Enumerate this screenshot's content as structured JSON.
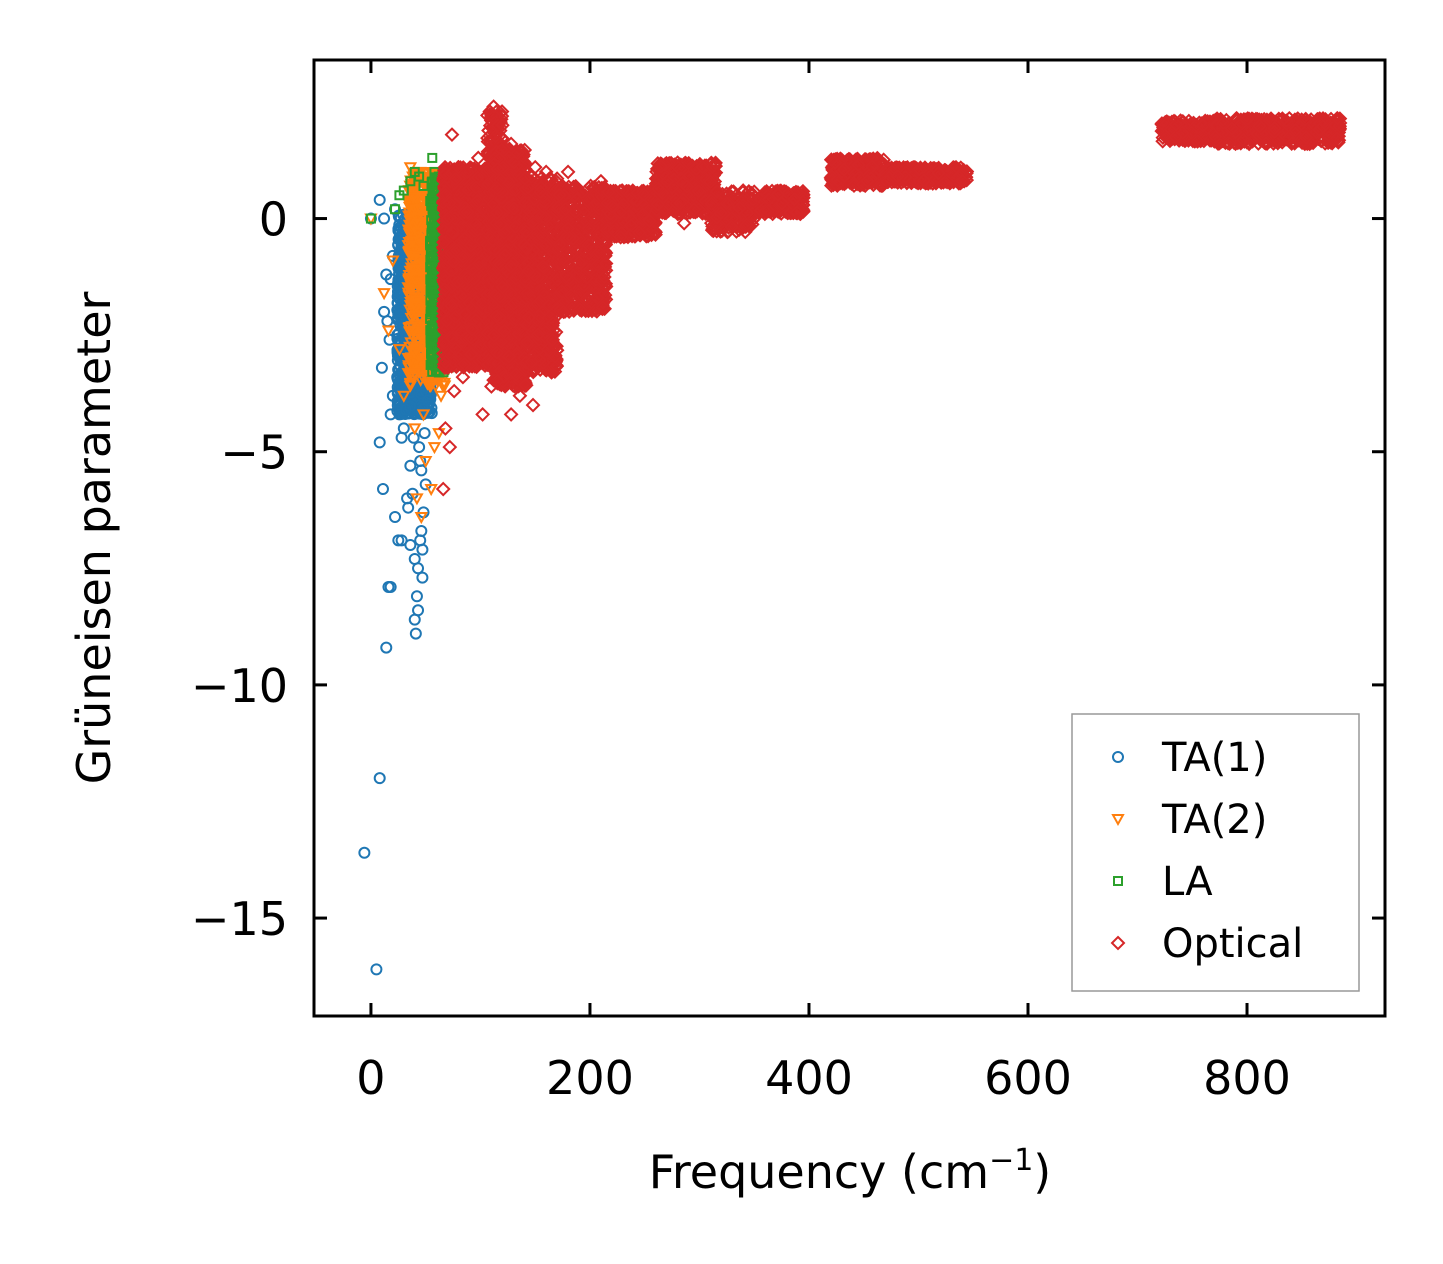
{
  "chart_data": {
    "type": "scatter",
    "title": "",
    "xlabel": "Frequency (cm",
    "xlabel_sup": "−1",
    "xlabel_end": ")",
    "ylabel": "Grüneisen parameter",
    "xlim": [
      -52,
      926
    ],
    "ylim": [
      -17.1,
      3.4
    ],
    "xticks": [
      0,
      200,
      400,
      600,
      800
    ],
    "xtick_labels": [
      "0",
      "200",
      "400",
      "600",
      "800"
    ],
    "yticks": [
      0,
      -5,
      -10,
      -15
    ],
    "ytick_labels": [
      "0",
      "−5",
      "−10",
      "−15"
    ],
    "grid": false,
    "legend_position": "lower-right",
    "series": [
      {
        "name": "TA(1)",
        "marker": "circle",
        "color": "#1f77b4",
        "points": [
          [
            0,
            0
          ],
          [
            8,
            0.4
          ],
          [
            12,
            0
          ],
          [
            -6,
            -13.6
          ],
          [
            5,
            -16.1
          ],
          [
            8,
            -12
          ],
          [
            8,
            -4.8
          ],
          [
            10,
            -3.2
          ],
          [
            11,
            -5.8
          ],
          [
            14,
            -9.2
          ],
          [
            16,
            -7.9
          ],
          [
            18,
            -7.9
          ],
          [
            18,
            -4.2
          ],
          [
            20,
            -3.8
          ],
          [
            22,
            -6.4
          ],
          [
            24,
            -3.4
          ],
          [
            26,
            -4.2
          ],
          [
            28,
            -6.9
          ],
          [
            30,
            -4.5
          ],
          [
            33,
            -6
          ],
          [
            34,
            -6.2
          ],
          [
            36,
            -5.3
          ],
          [
            38,
            -5.9
          ],
          [
            40,
            -8.6
          ],
          [
            41,
            -8.9
          ],
          [
            42,
            -8.1
          ],
          [
            43,
            -8.4
          ],
          [
            45,
            -5.2
          ],
          [
            46,
            -6.7
          ],
          [
            47,
            -7.1
          ],
          [
            48,
            -6.3
          ],
          [
            50,
            -5.7
          ],
          [
            15,
            -2.2
          ],
          [
            14,
            -1.2
          ],
          [
            18,
            -1.3
          ],
          [
            20,
            -0.8
          ],
          [
            24,
            -2.5
          ],
          [
            27,
            -1.6
          ],
          [
            30,
            -2.9
          ],
          [
            33,
            -0.9
          ],
          [
            36,
            -3.6
          ],
          [
            38,
            -2.6
          ],
          [
            39,
            -4.7
          ],
          [
            44,
            -4.9
          ],
          [
            46,
            -5.4
          ],
          [
            49,
            -4.6
          ],
          [
            52,
            -3.9
          ],
          [
            28,
            -4.7
          ],
          [
            32,
            -4.1
          ],
          [
            25,
            -6.9
          ],
          [
            36,
            -7
          ],
          [
            40,
            -7.3
          ],
          [
            43,
            -7.5
          ],
          [
            45,
            -6.9
          ],
          [
            47,
            -7.7
          ],
          [
            22,
            0.2
          ],
          [
            30,
            -0.2
          ],
          [
            35,
            -0.6
          ],
          [
            12,
            -2
          ],
          [
            17,
            -2.6
          ]
        ],
        "cluster": {
          "x": [
            24,
            56
          ],
          "y": [
            -4.2,
            0.1
          ],
          "n": 900
        }
      },
      {
        "name": "TA(2)",
        "marker": "triangle-down",
        "color": "#ff7f0e",
        "points": [
          [
            0,
            0
          ],
          [
            12,
            -1.6
          ],
          [
            16,
            -2.4
          ],
          [
            20,
            -0.9
          ],
          [
            26,
            -2.8
          ],
          [
            38,
            -3.4
          ],
          [
            42,
            -6
          ],
          [
            46,
            -6.4
          ],
          [
            50,
            -5.2
          ],
          [
            55,
            -5.8
          ],
          [
            58,
            -4.9
          ],
          [
            62,
            -4.6
          ],
          [
            64,
            -3.8
          ],
          [
            66,
            -2.9
          ],
          [
            36,
            1.1
          ],
          [
            40,
            0.9
          ],
          [
            45,
            1.0
          ],
          [
            50,
            0.7
          ],
          [
            55,
            0.9
          ],
          [
            60,
            0.8
          ],
          [
            30,
            -3.8
          ],
          [
            40,
            -4.5
          ],
          [
            48,
            -4.2
          ]
        ],
        "cluster": {
          "x": [
            34,
            68
          ],
          "y": [
            -3.6,
            1.0
          ],
          "n": 700
        }
      },
      {
        "name": "LA",
        "marker": "square",
        "color": "#2ca02c",
        "points": [
          [
            0,
            0
          ],
          [
            22,
            0.2
          ],
          [
            26,
            0.5
          ],
          [
            30,
            0.6
          ],
          [
            36,
            0.8
          ],
          [
            40,
            1.0
          ],
          [
            44,
            0.9
          ],
          [
            48,
            0.7
          ],
          [
            56,
            1.3
          ],
          [
            58,
            1.0
          ],
          [
            62,
            0.9
          ],
          [
            66,
            0.8
          ],
          [
            64,
            -2.6
          ],
          [
            66,
            -3.1
          ],
          [
            62,
            -3.3
          ]
        ],
        "cluster": {
          "x": [
            54,
            74
          ],
          "y": [
            -3.3,
            0.9
          ],
          "n": 500
        }
      },
      {
        "name": "Optical",
        "marker": "diamond",
        "color": "#d62728",
        "points": [
          [
            74,
            1.8
          ],
          [
            98,
            1.3
          ],
          [
            128,
            1.6
          ],
          [
            134,
            1.4
          ],
          [
            102,
            -4.2
          ],
          [
            128,
            -4.2
          ],
          [
            148,
            -4.0
          ],
          [
            66,
            -5.8
          ],
          [
            68,
            -4.5
          ],
          [
            72,
            -4.9
          ],
          [
            76,
            -3.7
          ],
          [
            84,
            -3.4
          ],
          [
            92,
            -2.9
          ],
          [
            110,
            -3.6
          ],
          [
            136,
            -3.8
          ],
          [
            166,
            -2.6
          ],
          [
            176,
            -2.0
          ],
          [
            200,
            -1.1
          ],
          [
            228,
            -0.4
          ],
          [
            245,
            -0.3
          ],
          [
            262,
            0.3
          ],
          [
            286,
            -0.1
          ],
          [
            295,
            0.2
          ],
          [
            180,
            1.0
          ],
          [
            210,
            0.8
          ],
          [
            160,
            1.0
          ],
          [
            150,
            1.1
          ],
          [
            88,
            1.0
          ],
          [
            80,
            1.1
          ],
          [
            112,
            2.4
          ],
          [
            120,
            2.0
          ]
        ],
        "clusters": [
          {
            "x": [
              66,
              112
            ],
            "y": [
              -3.2,
              1.1
            ],
            "n": 1700
          },
          {
            "x": [
              106,
              120
            ],
            "y": [
              -3.2,
              2.3
            ],
            "n": 350
          },
          {
            "x": [
              112,
              142
            ],
            "y": [
              -3.6,
              1.5
            ],
            "n": 1200
          },
          {
            "x": [
              140,
              170
            ],
            "y": [
              -3.3,
              0.9
            ],
            "n": 700
          },
          {
            "x": [
              170,
              215
            ],
            "y": [
              -2.0,
              0.7
            ],
            "n": 600
          },
          {
            "x": [
              215,
              260
            ],
            "y": [
              -0.4,
              0.6
            ],
            "n": 450
          },
          {
            "x": [
              260,
              315
            ],
            "y": [
              0.1,
              1.2
            ],
            "n": 500
          },
          {
            "x": [
              310,
              350
            ],
            "y": [
              -0.3,
              0.6
            ],
            "n": 200
          },
          {
            "x": [
              355,
              395
            ],
            "y": [
              0.1,
              0.6
            ],
            "n": 220
          },
          {
            "x": [
              420,
              470
            ],
            "y": [
              0.7,
              1.3
            ],
            "n": 260
          },
          {
            "x": [
              470,
              545
            ],
            "y": [
              0.75,
              1.1
            ],
            "n": 300
          },
          {
            "x": [
              722,
              780
            ],
            "y": [
              1.65,
              2.1
            ],
            "n": 300
          },
          {
            "x": [
              770,
              885
            ],
            "y": [
              1.6,
              2.15
            ],
            "n": 500
          }
        ]
      }
    ]
  }
}
